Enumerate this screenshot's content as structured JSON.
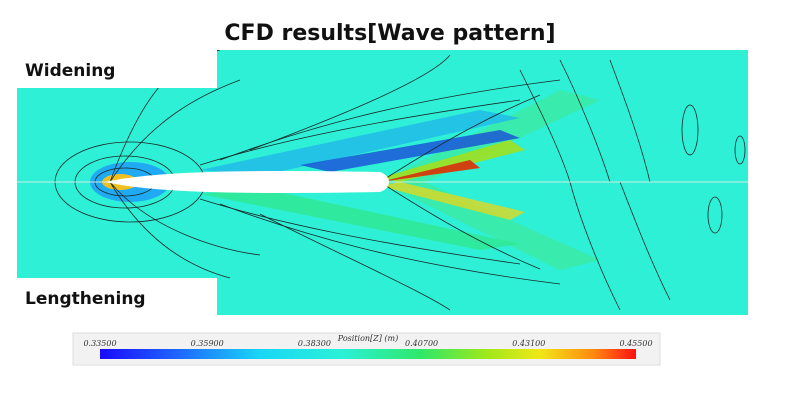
{
  "header": {
    "title": "CFD results[Wave pattern]"
  },
  "panels": {
    "top_label": "Widening",
    "bottom_label": "Lengthening"
  },
  "colorbar": {
    "title": "Position[Z] (m)",
    "ticks": [
      "0.33500",
      "0.35900",
      "0.38300",
      "0.40700",
      "0.43100",
      "0.45500"
    ]
  }
}
